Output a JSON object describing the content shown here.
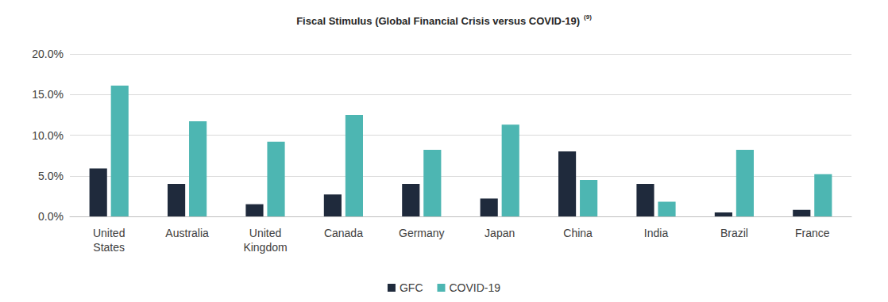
{
  "chart_data": {
    "type": "bar",
    "title": "Fiscal Stimulus (Global Financial Crisis versus COVID-19) (9)",
    "categories": [
      "United States",
      "Australia",
      "United Kingdom",
      "Canada",
      "Germany",
      "Japan",
      "China",
      "India",
      "Brazil",
      "France"
    ],
    "series": [
      {
        "name": "GFC",
        "color": "#1f2a3c",
        "values": [
          5.9,
          4.0,
          1.5,
          2.7,
          4.0,
          2.2,
          8.0,
          4.0,
          0.5,
          0.8
        ]
      },
      {
        "name": "COVID-19",
        "color": "#4db6b2",
        "values": [
          16.1,
          11.7,
          9.2,
          12.5,
          8.2,
          11.3,
          4.5,
          1.8,
          8.2,
          5.2
        ]
      }
    ],
    "ylim": [
      0,
      20
    ],
    "yticks": [
      {
        "value": 0,
        "label": "0.0%"
      },
      {
        "value": 5,
        "label": "5.0%"
      },
      {
        "value": 10,
        "label": "10.0%"
      },
      {
        "value": 15,
        "label": "15.0%"
      },
      {
        "value": 20,
        "label": "20.0%"
      }
    ],
    "grid": true,
    "legend": "bottom"
  }
}
